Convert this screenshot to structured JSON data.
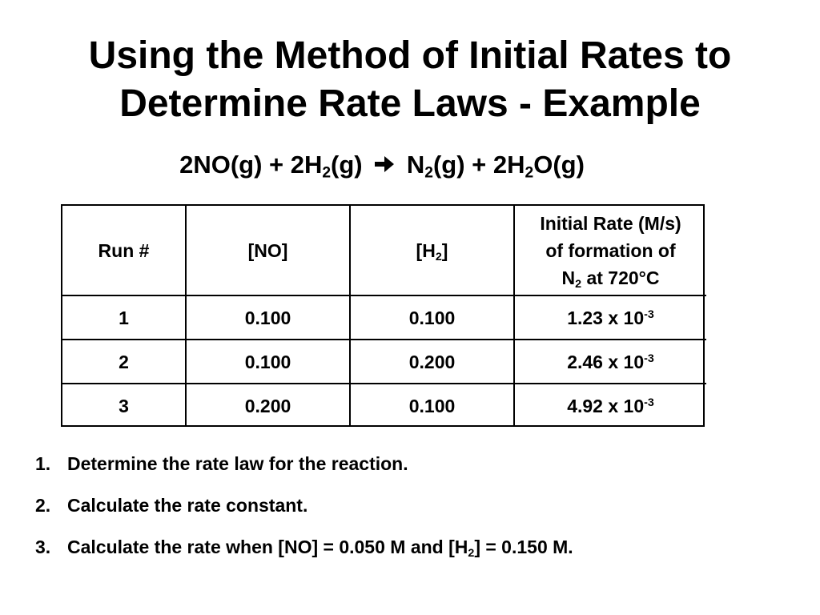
{
  "title": {
    "line1": "Using the Method of Initial Rates to",
    "line2": "Determine Rate Laws - Example"
  },
  "equation": {
    "part1": "2NO(g) + 2H",
    "sub1": "2",
    "part2": "(g)",
    "arrow_icon": "right-arrow-icon",
    "part3": "N",
    "sub2": "2",
    "part4": "(g) + 2H",
    "sub3": "2",
    "part5": "O(g)"
  },
  "table": {
    "headers": {
      "run": "Run #",
      "no": "[NO]",
      "h2_pre": "[H",
      "h2_sub": "2",
      "h2_post": "]",
      "rate_line1": "Initial Rate (M/s)",
      "rate_line2": "of formation of",
      "rate_n": "N",
      "rate_n_sub": "2",
      "rate_at": " at 720°C"
    },
    "rows": [
      {
        "run": "1",
        "no": "0.100",
        "h2": "0.100",
        "rate_mantissa": "1.23 x 10",
        "rate_exp": "-3"
      },
      {
        "run": "2",
        "no": "0.100",
        "h2": "0.200",
        "rate_mantissa": "2.46 x 10",
        "rate_exp": "-3"
      },
      {
        "run": "3",
        "no": "0.200",
        "h2": "0.100",
        "rate_mantissa": "4.92 x 10",
        "rate_exp": "-3"
      }
    ]
  },
  "questions": [
    {
      "num": "1.",
      "text": "Determine the rate law for the reaction."
    },
    {
      "num": "2.",
      "text": "Calculate the rate constant."
    },
    {
      "num": "3.",
      "text_pre": "Calculate the rate when [NO] = 0.050 M and [H",
      "sub": "2",
      "text_post": "] = 0.150 M."
    }
  ]
}
